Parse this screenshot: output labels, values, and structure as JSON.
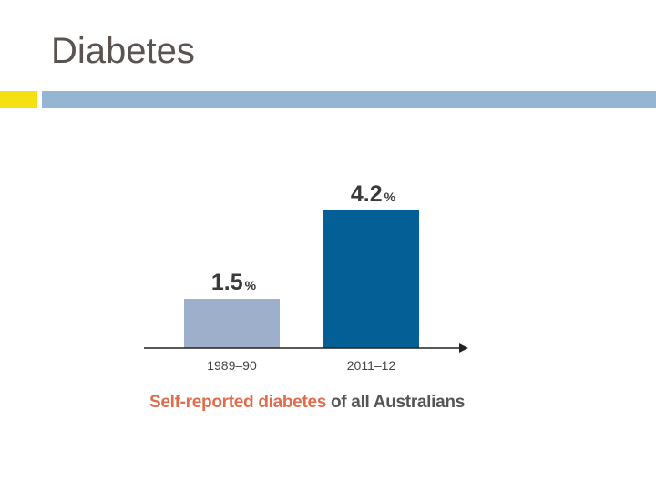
{
  "slide": {
    "title": "Diabetes",
    "accent_color": "#f5e014",
    "bar_color": "#94b6d2"
  },
  "chart_data": {
    "type": "bar",
    "categories": [
      "1989–90",
      "2011–12"
    ],
    "values": [
      1.5,
      4.2
    ],
    "value_labels": [
      "1.5",
      "4.2"
    ],
    "unit": "%",
    "colors": [
      "#9dafcb",
      "#035f95"
    ],
    "ylim": [
      0,
      4.2
    ],
    "grid": false,
    "legend": "none"
  },
  "caption": {
    "part1": "Self-reported diabetes",
    "part2": " of all Australians",
    "part1_color": "#e06c4b",
    "part2_color": "#555555"
  }
}
